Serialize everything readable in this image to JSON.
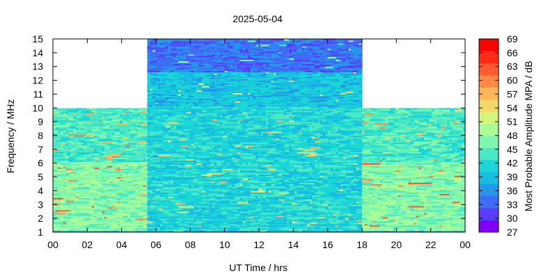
{
  "chart_data": {
    "type": "heatmap",
    "title": "2025-05-04",
    "xlabel": "UT Time / hrs",
    "ylabel": "Frequency / MHz",
    "colorbar_label": "Most Probable Amplitude MPA / dB",
    "xlim": [
      0,
      24
    ],
    "ylim": [
      1,
      15
    ],
    "x_ticks": [
      "00",
      "02",
      "04",
      "06",
      "08",
      "10",
      "12",
      "14",
      "16",
      "18",
      "20",
      "22",
      "00"
    ],
    "y_ticks": [
      "1",
      "2",
      "3",
      "4",
      "5",
      "6",
      "7",
      "8",
      "9",
      "10",
      "11",
      "12",
      "13",
      "14",
      "15"
    ],
    "colorbar_ticks": [
      "69",
      "66",
      "63",
      "60",
      "57",
      "54",
      "51",
      "48",
      "45",
      "42",
      "39",
      "36",
      "33",
      "30",
      "27"
    ],
    "colorbar_range": [
      27,
      69
    ],
    "colormap": [
      "#7f00ff",
      "#5a3cfa",
      "#3f6cf4",
      "#2596ea",
      "#17bde0",
      "#1ad6d6",
      "#4ae8c4",
      "#7ff6ae",
      "#a8fc96",
      "#d3f67a",
      "#f2d86a",
      "#ffb65a",
      "#ff8a46",
      "#ff5a30",
      "#ff2a18",
      "#ff0000"
    ],
    "coverage": [
      {
        "x": [
          0,
          5.5
        ],
        "y": [
          1,
          10
        ]
      },
      {
        "x": [
          5.5,
          18
        ],
        "y": [
          1,
          15
        ]
      },
      {
        "x": [
          18,
          24
        ],
        "y": [
          1,
          10
        ]
      }
    ],
    "grid": false
  }
}
